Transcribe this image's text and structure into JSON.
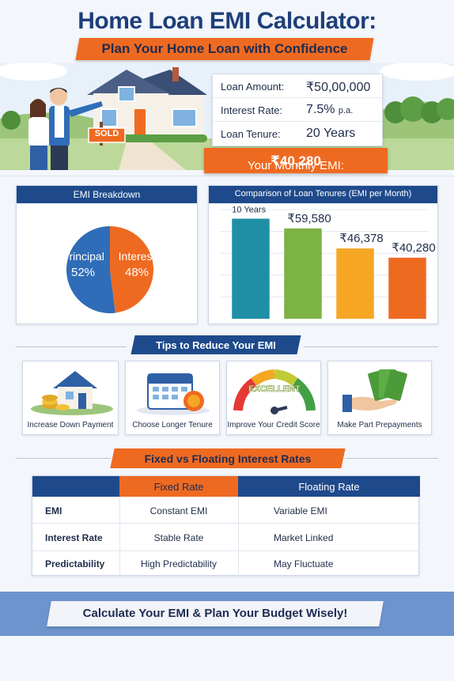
{
  "header": {
    "title": "Home Loan EMI Calculator:",
    "subtitle": "Plan Your Home Loan with Confidence"
  },
  "hero": {
    "sign_text": "SOLD"
  },
  "loan": {
    "amount_label": "Loan Amount:",
    "amount_value": "₹50,00,000",
    "rate_label": "Interest Rate:",
    "rate_value": "7.5%",
    "rate_unit": "p.a.",
    "tenure_label": "Loan Tenure:",
    "tenure_value": "20 Years",
    "emi_label": "Your Monthly EMI:",
    "emi_value": "₹40,280"
  },
  "breakdown": {
    "title": "EMI Breakdown"
  },
  "tenure_chart": {
    "title": "Comparison of Loan Tenures (EMI per Month)"
  },
  "chart_data": [
    {
      "type": "pie",
      "title": "EMI Breakdown",
      "slices": [
        {
          "label": "Principal",
          "value": 52,
          "display": "52%",
          "color": "#2f6db8"
        },
        {
          "label": "Interest",
          "value": 48,
          "display": "48%",
          "color": "#ef6a21"
        }
      ]
    },
    {
      "type": "bar",
      "title": "Comparison of Loan Tenures (EMI per Month)",
      "categories": [
        "10 Years",
        "",
        "",
        ""
      ],
      "values": [
        66000,
        59580,
        46378,
        40280
      ],
      "bar_labels": [
        "",
        "₹59,580",
        "₹46,378",
        "₹40,280"
      ],
      "colors": [
        "#1f8fa5",
        "#7cb342",
        "#f5a623",
        "#ef6a21"
      ],
      "ylim": [
        0,
        72000
      ],
      "grid": true
    }
  ],
  "tips": {
    "title": "Tips to Reduce Your EMI",
    "items": [
      {
        "label": "Increase Down Payment",
        "icon": "house-coins-icon"
      },
      {
        "label": "Choose Longer Tenure",
        "icon": "calendar-icon"
      },
      {
        "label": "Improve Your Credit Score",
        "icon": "credit-gauge-icon"
      },
      {
        "label": "Make Part Prepayments",
        "icon": "cash-hand-icon"
      }
    ],
    "gauge_text": "EXCELLENT"
  },
  "comparison": {
    "title": "Fixed vs Floating Interest Rates",
    "headers": [
      "",
      "Fixed Rate",
      "Floating Rate"
    ],
    "rows": [
      {
        "label": "EMI",
        "fixed": "Constant EMI",
        "floating": "Variable EMI"
      },
      {
        "label": "Interest Rate",
        "fixed": "Stable Rate",
        "floating": "Market Linked"
      },
      {
        "label": "Predictability",
        "fixed": "High Predictability",
        "floating": "May Fluctuate"
      }
    ]
  },
  "footer": {
    "text": "Calculate Your EMI & Plan Your Budget Wisely!"
  },
  "colors": {
    "navy": "#1e4a8c",
    "orange": "#ef6a21",
    "title_blue": "#1e3f7a"
  }
}
